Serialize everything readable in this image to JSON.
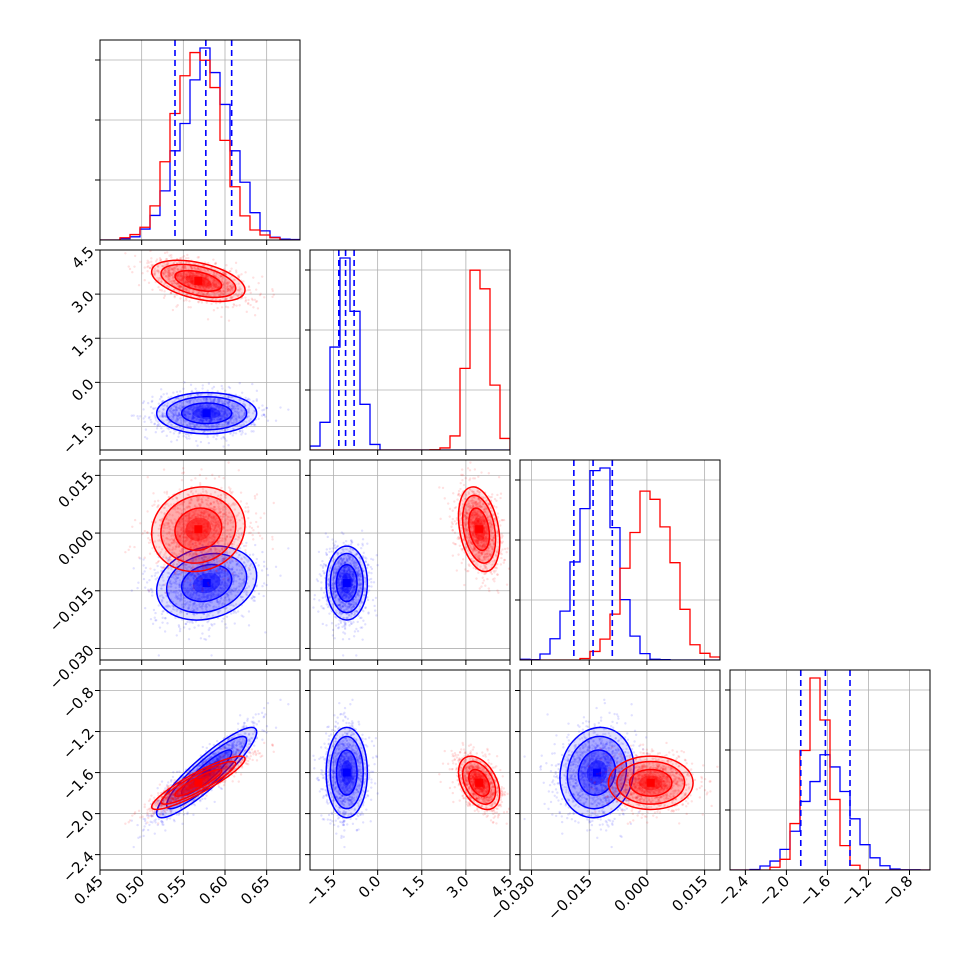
{
  "chart_data": {
    "type": "corner",
    "params": [
      {
        "ticks": [
          0.45,
          0.5,
          0.55,
          0.6,
          0.65
        ],
        "tick_labels": [
          "0.45",
          "0.50",
          "0.55",
          "0.60",
          "0.65"
        ],
        "range": [
          0.45,
          0.69
        ]
      },
      {
        "ticks": [
          -1.5,
          0.0,
          1.5,
          3.0,
          4.5
        ],
        "tick_labels": [
          "−1.5",
          "0.0",
          "1.5",
          "3.0",
          "4.5"
        ],
        "range": [
          -2.3,
          4.5
        ]
      },
      {
        "ticks": [
          -0.03,
          -0.015,
          0.0,
          0.015
        ],
        "tick_labels": [
          "−0.030",
          "−0.015",
          "0.000",
          "0.015"
        ],
        "range": [
          -0.033,
          0.019
        ]
      },
      {
        "ticks": [
          -2.4,
          -2.0,
          -1.6,
          -1.2,
          -0.8
        ],
        "tick_labels": [
          "−2.4",
          "−2.0",
          "−1.6",
          "−1.2",
          "−0.8"
        ],
        "range": [
          -2.55,
          -0.6
        ]
      }
    ],
    "series": [
      {
        "color": "#0000ff",
        "mean": [
          0.578,
          -1.05,
          -0.013,
          -1.6
        ],
        "std": [
          0.03,
          0.35,
          0.0048,
          0.22
        ],
        "corr": [
          [
            1,
            0,
            0.2,
            0.9
          ],
          [
            0,
            1,
            0,
            0
          ],
          [
            0.2,
            0,
            1,
            0.1
          ],
          [
            0.9,
            0,
            0.1,
            1
          ]
        ],
        "quantiles": [
          [
            0.54,
            0.577,
            0.608
          ],
          [
            -1.32,
            -1.09,
            -0.8
          ],
          [
            -0.019,
            -0.014,
            -0.009
          ],
          [
            -1.86,
            -1.62,
            -1.38
          ]
        ]
      },
      {
        "color": "#ff0000",
        "mean": [
          0.568,
          3.45,
          0.001,
          -1.7
        ],
        "std": [
          0.028,
          0.35,
          0.0055,
          0.13
        ],
        "corr": [
          [
            1,
            -0.45,
            0.1,
            0.9
          ],
          [
            -0.45,
            1,
            -0.3,
            -0.4
          ],
          [
            0.1,
            -0.3,
            1,
            0
          ],
          [
            0.9,
            -0.4,
            0,
            1
          ]
        ],
        "quantiles": []
      }
    ],
    "grid": true
  }
}
